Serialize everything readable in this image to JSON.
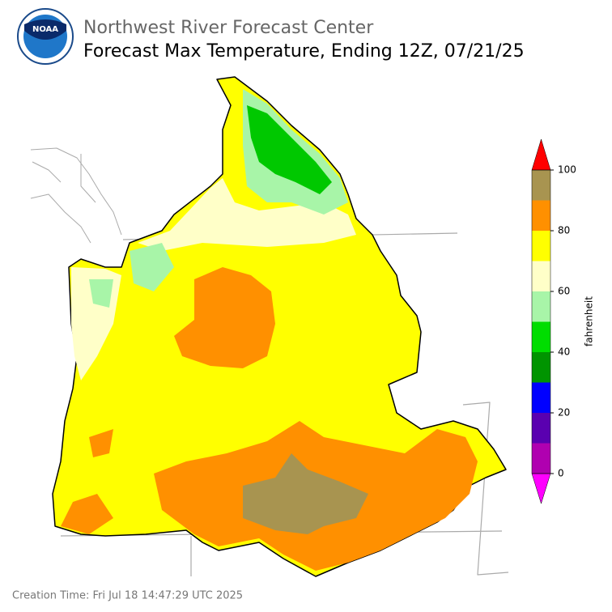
{
  "header": {
    "logo_text": "NOAA",
    "agency": "Northwest River Forecast Center",
    "title": "Forecast Max Temperature, Ending 12Z, 07/21/25"
  },
  "colorbar": {
    "label": "fahrenheit",
    "bounds": [
      0,
      10,
      20,
      30,
      40,
      50,
      60,
      70,
      80,
      90,
      100
    ],
    "colors": [
      "#b000b0",
      "#5a00b0",
      "#0000ff",
      "#009400",
      "#00dd00",
      "#a8f5a8",
      "#ffffc8",
      "#ffff00",
      "#ff9000",
      "#a89450"
    ],
    "under_color": "#ff00ff",
    "over_color": "#ff0000",
    "ticks": [
      0,
      20,
      40,
      60,
      80,
      100
    ]
  },
  "footer": {
    "creation_time": "Creation Time: Fri Jul 18 14:47:29 UTC 2025"
  }
}
